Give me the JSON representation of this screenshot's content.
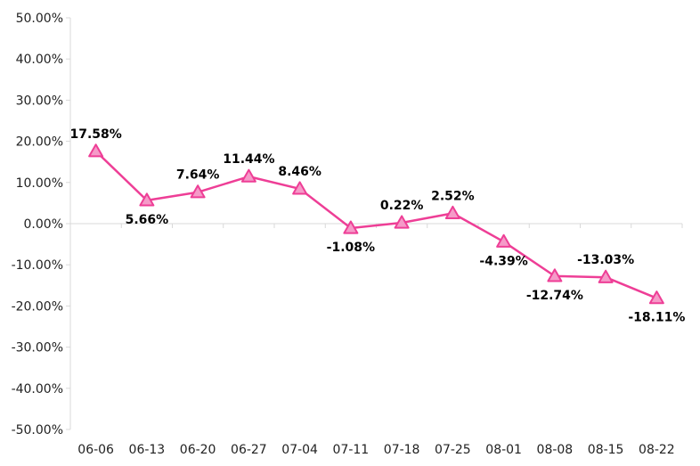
{
  "chart_data": {
    "type": "line",
    "title": "",
    "xlabel": "",
    "ylabel": "",
    "x": [
      "06-06",
      "06-13",
      "06-20",
      "06-27",
      "07-04",
      "07-11",
      "07-18",
      "07-25",
      "08-01",
      "08-08",
      "08-15",
      "08-22"
    ],
    "series": [
      {
        "values": [
          17.58,
          5.66,
          7.64,
          11.44,
          8.46,
          -1.08,
          0.22,
          2.52,
          -4.39,
          -12.74,
          -13.03,
          -18.11
        ],
        "labels": [
          "17.58%",
          "5.66%",
          "7.64%",
          "11.44%",
          "8.46%",
          "-1.08%",
          "0.22%",
          "2.52%",
          "-4.39%",
          "-12.74%",
          "-13.03%",
          "-18.11%"
        ],
        "label_positions": [
          "above",
          "below",
          "above",
          "above",
          "above",
          "below",
          "above",
          "above",
          "below",
          "below",
          "above",
          "below"
        ],
        "color": "#ee3e96",
        "marker": "triangle",
        "marker_fill": "#f59ac8"
      }
    ],
    "ylim": [
      -50,
      50
    ],
    "yticks": [
      50,
      40,
      30,
      20,
      10,
      0,
      -10,
      -20,
      -30,
      -40,
      -50
    ],
    "ytick_labels": [
      "50.00%",
      "40.00%",
      "30.00%",
      "20.00%",
      "10.00%",
      "0.00%",
      "-10.00%",
      "-20.00%",
      "-30.00%",
      "-40.00%",
      "-50.00%"
    ],
    "grid": false,
    "legend": "none",
    "axis_color": "#d9d9d9"
  }
}
